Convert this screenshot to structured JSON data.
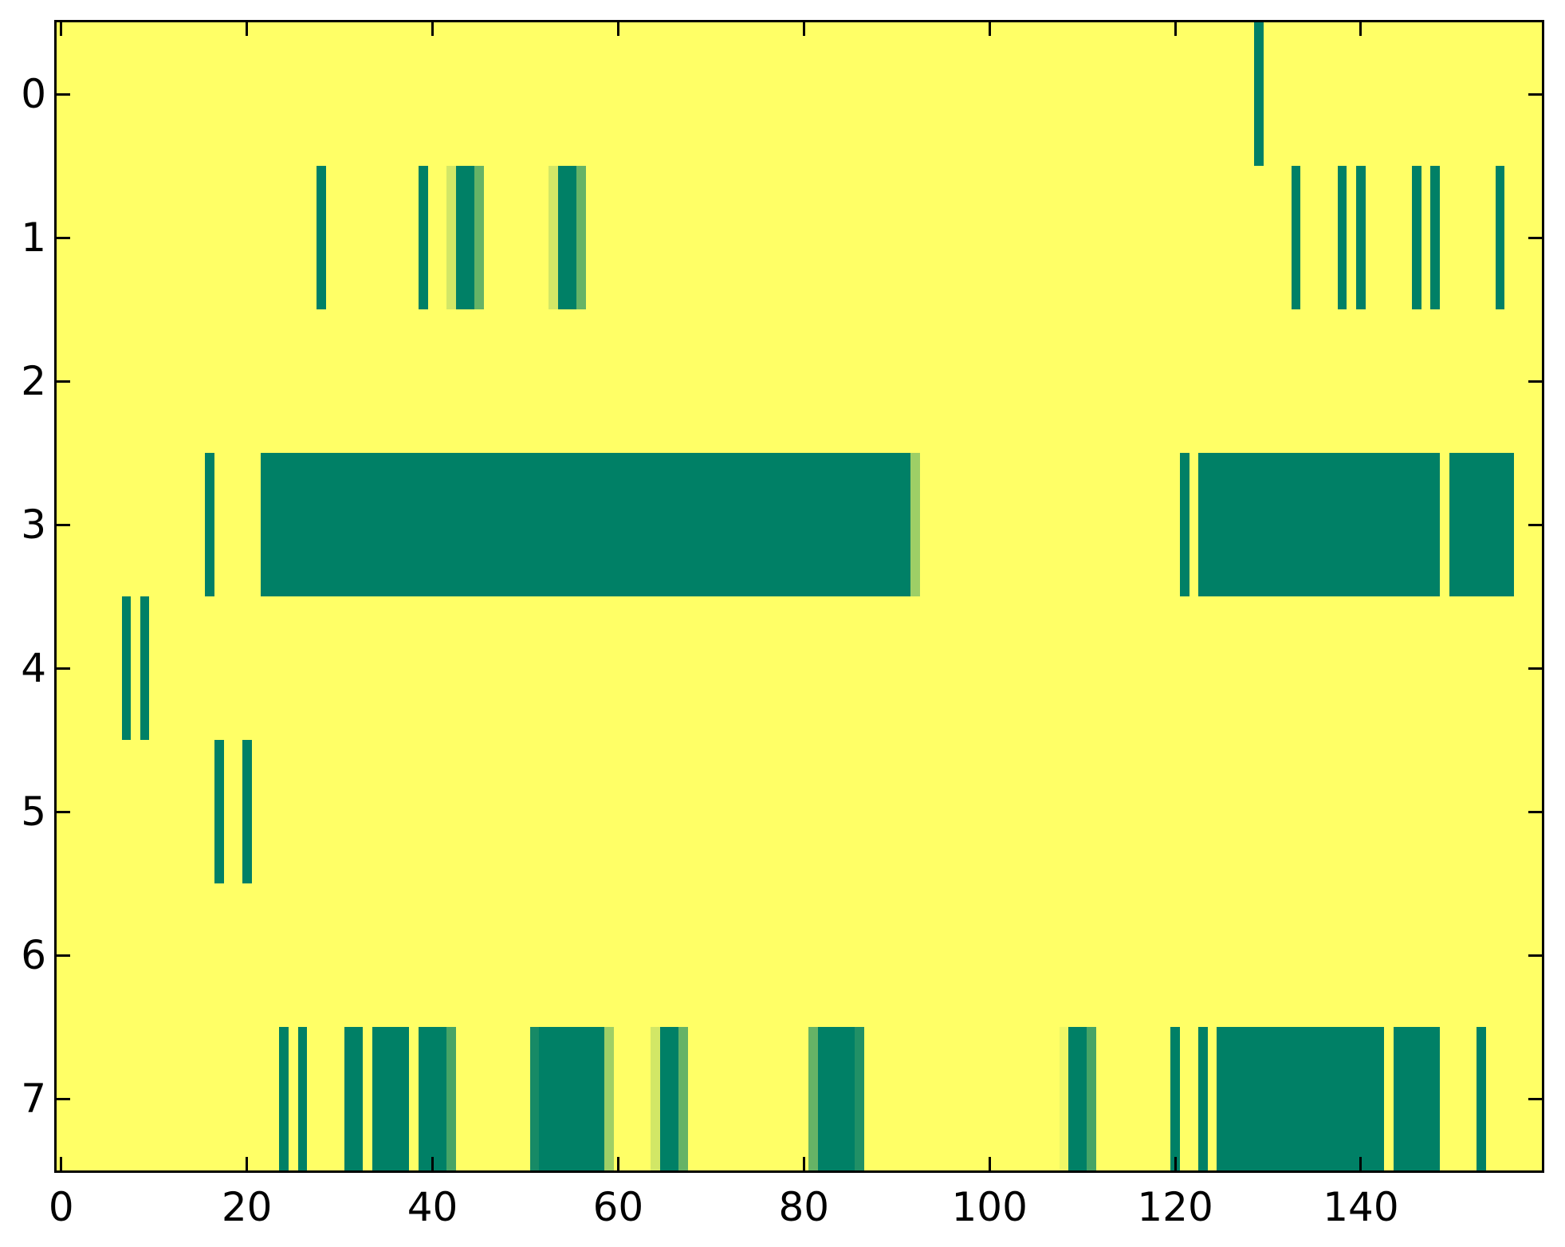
{
  "figure": {
    "background": "#ffffff",
    "plot_background": "#FFFF66",
    "axis_color": "#000000",
    "tick_label_color": "#000000"
  },
  "chart_data": {
    "type": "heatmap",
    "title": "",
    "xlabel": "",
    "ylabel": "",
    "colormap": "summer",
    "n_rows": 8,
    "n_cols": 160,
    "x_range": [
      -0.5,
      159.5
    ],
    "y_range": [
      -0.5,
      7.5
    ],
    "x_ticks": [
      0,
      20,
      40,
      60,
      80,
      100,
      120,
      140
    ],
    "y_ticks": [
      0,
      1,
      2,
      3,
      4,
      5,
      6,
      7
    ],
    "grid": false,
    "legend": false,
    "background_value": 0.0,
    "palette": {
      "background": "#FFFF66",
      "teal": "#008066",
      "teal_light": "#178A66",
      "teal_light2": "#219066",
      "green_med": "#66B366",
      "green_med2": "#47A466",
      "green_light": "#9ECF66",
      "pale": "#D2E766",
      "pale_faint": "#EEF766"
    },
    "rows": [
      {
        "row": 0,
        "segments": [
          {
            "start": 129,
            "end": 129,
            "color": "teal",
            "value": 1.0
          }
        ]
      },
      {
        "row": 1,
        "segments": [
          {
            "start": 28,
            "end": 28,
            "color": "teal",
            "value": 1.0
          },
          {
            "start": 39,
            "end": 39,
            "color": "teal",
            "value": 1.0
          },
          {
            "start": 42,
            "end": 42,
            "color": "pale",
            "value": 0.18
          },
          {
            "start": 43,
            "end": 44,
            "color": "teal",
            "value": 1.0
          },
          {
            "start": 45,
            "end": 45,
            "color": "green_med",
            "value": 0.6
          },
          {
            "start": 53,
            "end": 53,
            "color": "pale",
            "value": 0.18
          },
          {
            "start": 54,
            "end": 55,
            "color": "teal",
            "value": 1.0
          },
          {
            "start": 56,
            "end": 56,
            "color": "green_med",
            "value": 0.6
          },
          {
            "start": 133,
            "end": 133,
            "color": "teal",
            "value": 1.0
          },
          {
            "start": 138,
            "end": 138,
            "color": "teal",
            "value": 1.0
          },
          {
            "start": 140,
            "end": 140,
            "color": "teal",
            "value": 1.0
          },
          {
            "start": 146,
            "end": 146,
            "color": "teal",
            "value": 1.0
          },
          {
            "start": 148,
            "end": 148,
            "color": "teal",
            "value": 1.0
          },
          {
            "start": 155,
            "end": 155,
            "color": "teal",
            "value": 1.0
          }
        ]
      },
      {
        "row": 2,
        "segments": []
      },
      {
        "row": 3,
        "segments": [
          {
            "start": 16,
            "end": 16,
            "color": "teal",
            "value": 1.0
          },
          {
            "start": 22,
            "end": 91,
            "color": "teal",
            "value": 1.0
          },
          {
            "start": 92,
            "end": 92,
            "color": "green_light",
            "value": 0.38
          },
          {
            "start": 121,
            "end": 121,
            "color": "teal",
            "value": 1.0
          },
          {
            "start": 123,
            "end": 148,
            "color": "teal",
            "value": 1.0
          },
          {
            "start": 150,
            "end": 156,
            "color": "teal",
            "value": 1.0
          }
        ]
      },
      {
        "row": 4,
        "segments": [
          {
            "start": 7,
            "end": 7,
            "color": "teal",
            "value": 1.0
          },
          {
            "start": 9,
            "end": 9,
            "color": "teal",
            "value": 1.0
          }
        ]
      },
      {
        "row": 5,
        "segments": [
          {
            "start": 17,
            "end": 17,
            "color": "teal",
            "value": 1.0
          },
          {
            "start": 20,
            "end": 20,
            "color": "teal",
            "value": 1.0
          }
        ]
      },
      {
        "row": 6,
        "segments": []
      },
      {
        "row": 7,
        "segments": [
          {
            "start": 24,
            "end": 24,
            "color": "teal",
            "value": 1.0
          },
          {
            "start": 26,
            "end": 26,
            "color": "teal",
            "value": 1.0
          },
          {
            "start": 31,
            "end": 32,
            "color": "teal",
            "value": 1.0
          },
          {
            "start": 34,
            "end": 37,
            "color": "teal",
            "value": 1.0
          },
          {
            "start": 39,
            "end": 41,
            "color": "teal",
            "value": 1.0
          },
          {
            "start": 42,
            "end": 42,
            "color": "green_med2",
            "value": 0.72
          },
          {
            "start": 51,
            "end": 51,
            "color": "teal_light",
            "value": 0.91
          },
          {
            "start": 52,
            "end": 58,
            "color": "teal",
            "value": 1.0
          },
          {
            "start": 59,
            "end": 59,
            "color": "green_light",
            "value": 0.38
          },
          {
            "start": 64,
            "end": 64,
            "color": "pale",
            "value": 0.18
          },
          {
            "start": 65,
            "end": 66,
            "color": "teal",
            "value": 1.0
          },
          {
            "start": 67,
            "end": 67,
            "color": "green_med",
            "value": 0.6
          },
          {
            "start": 81,
            "end": 81,
            "color": "green_med",
            "value": 0.6
          },
          {
            "start": 82,
            "end": 85,
            "color": "teal",
            "value": 1.0
          },
          {
            "start": 86,
            "end": 86,
            "color": "teal_light2",
            "value": 0.87
          },
          {
            "start": 108,
            "end": 108,
            "color": "pale_faint",
            "value": 0.07
          },
          {
            "start": 109,
            "end": 110,
            "color": "teal",
            "value": 1.0
          },
          {
            "start": 111,
            "end": 111,
            "color": "green_med2",
            "value": 0.72
          },
          {
            "start": 120,
            "end": 120,
            "color": "teal",
            "value": 1.0
          },
          {
            "start": 123,
            "end": 123,
            "color": "teal",
            "value": 1.0
          },
          {
            "start": 125,
            "end": 142,
            "color": "teal",
            "value": 1.0
          },
          {
            "start": 144,
            "end": 148,
            "color": "teal",
            "value": 1.0
          },
          {
            "start": 153,
            "end": 153,
            "color": "teal",
            "value": 1.0
          }
        ]
      }
    ]
  }
}
